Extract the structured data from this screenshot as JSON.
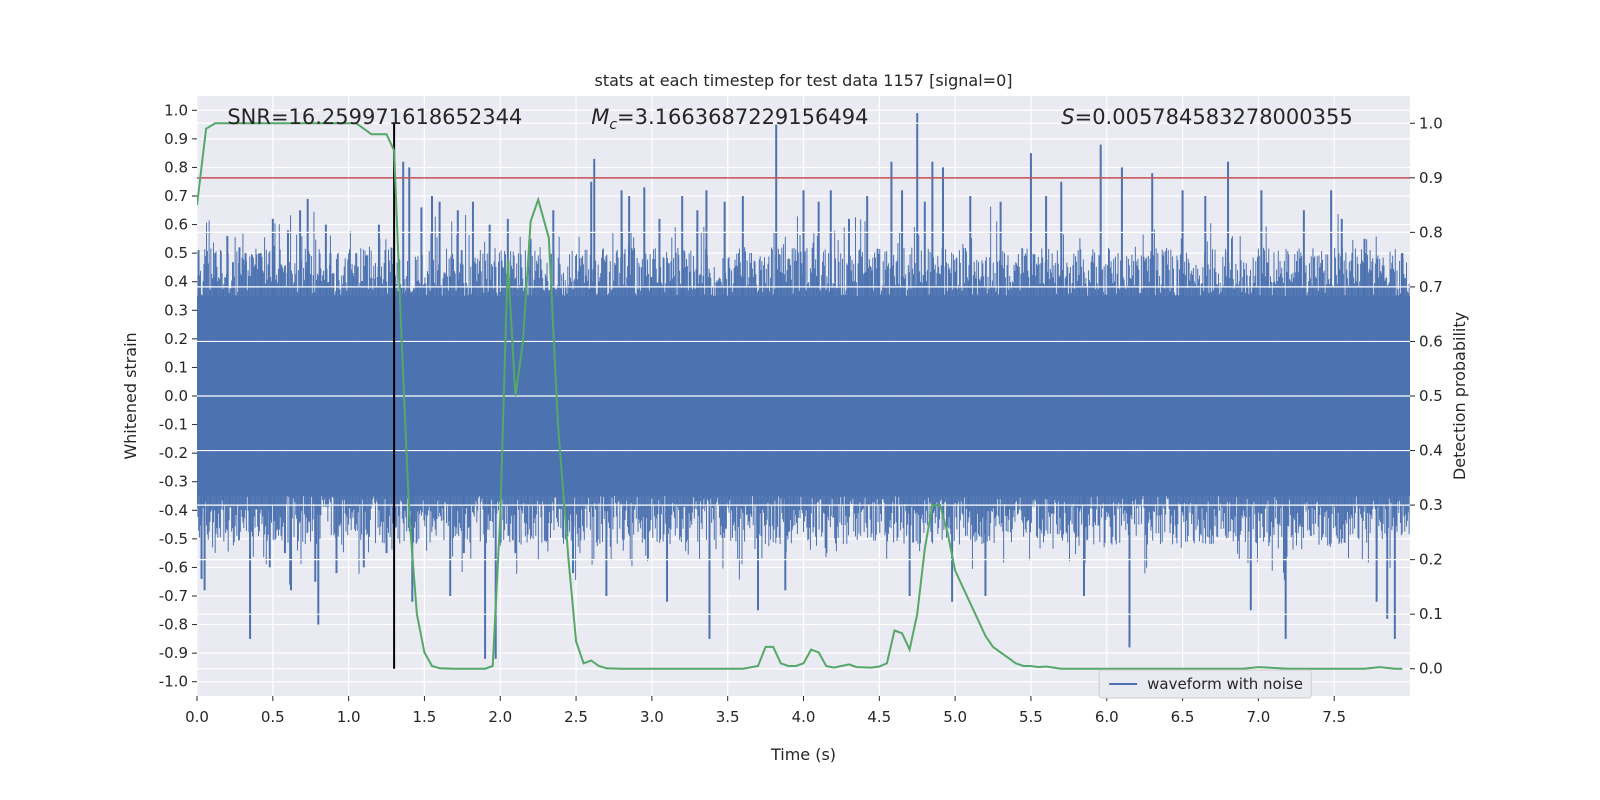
{
  "chart_data": {
    "type": "line",
    "title": "stats at each timestep for test data 1157 [signal=0]",
    "xlabel": "Time (s)",
    "ylabel": "Whitened strain",
    "y2label": "Detection probability",
    "xlim": [
      0.0,
      8.0
    ],
    "ylim": [
      -1.05,
      1.05
    ],
    "y2lim": [
      -0.05,
      1.05
    ],
    "xticks": [
      "0.0",
      "0.5",
      "1.0",
      "1.5",
      "2.0",
      "2.5",
      "3.0",
      "3.5",
      "4.0",
      "4.5",
      "5.0",
      "5.5",
      "6.0",
      "6.5",
      "7.0",
      "7.5"
    ],
    "yticks": [
      "1.0",
      "0.9",
      "0.8",
      "0.7",
      "0.6",
      "0.5",
      "0.4",
      "0.3",
      "0.2",
      "0.1",
      "0.0",
      "-0.1",
      "-0.2",
      "-0.3",
      "-0.4",
      "-0.5",
      "-0.6",
      "-0.7",
      "-0.8",
      "-0.9",
      "-1.0"
    ],
    "y2ticks": [
      "1.0",
      "0.9",
      "0.8",
      "0.7",
      "0.6",
      "0.5",
      "0.4",
      "0.3",
      "0.2",
      "0.1",
      "0.0"
    ],
    "annotations": {
      "snr": "SNR=16.259971618652344",
      "mc_symbol": "M",
      "mc_sub": "c",
      "mc_value": "=3.1663687229156494",
      "s_symbol": "S",
      "s_value": "=0.005784583278000355"
    },
    "legend": {
      "label": "waveform with noise",
      "location": "lower-center-right"
    },
    "threshold": {
      "value": 0.9,
      "axis": "y2",
      "color": "#c44e52"
    },
    "marker_time": 1.3,
    "waveform": {
      "name": "waveform with noise",
      "color": "#4c72b0",
      "core_amplitude": 0.35,
      "spikes": [
        {
          "t": 0.01,
          "v": 0.51
        },
        {
          "t": 0.03,
          "v": -0.64
        },
        {
          "t": 0.05,
          "v": -0.68
        },
        {
          "t": 0.12,
          "v": 0.5
        },
        {
          "t": 0.2,
          "v": 0.56
        },
        {
          "t": 0.28,
          "v": 0.52
        },
        {
          "t": 0.32,
          "v": 0.5
        },
        {
          "t": 0.35,
          "v": -0.85
        },
        {
          "t": 0.42,
          "v": 0.5
        },
        {
          "t": 0.48,
          "v": -0.6
        },
        {
          "t": 0.5,
          "v": 0.62
        },
        {
          "t": 0.58,
          "v": -0.55
        },
        {
          "t": 0.6,
          "v": 0.58
        },
        {
          "t": 0.62,
          "v": -0.68
        },
        {
          "t": 0.68,
          "v": 0.65
        },
        {
          "t": 0.73,
          "v": 0.69
        },
        {
          "t": 0.78,
          "v": -0.65
        },
        {
          "t": 0.8,
          "v": -0.8
        },
        {
          "t": 0.85,
          "v": 0.6
        },
        {
          "t": 0.88,
          "v": 0.5
        },
        {
          "t": 0.92,
          "v": -0.62
        },
        {
          "t": 1.05,
          "v": 0.5
        },
        {
          "t": 1.1,
          "v": -0.6
        },
        {
          "t": 1.2,
          "v": 0.6
        },
        {
          "t": 1.25,
          "v": -0.55
        },
        {
          "t": 1.36,
          "v": 0.82
        },
        {
          "t": 1.4,
          "v": 0.8
        },
        {
          "t": 1.42,
          "v": -0.72
        },
        {
          "t": 1.48,
          "v": 0.66
        },
        {
          "t": 1.55,
          "v": 0.7
        },
        {
          "t": 1.6,
          "v": 0.68
        },
        {
          "t": 1.67,
          "v": -0.7
        },
        {
          "t": 1.72,
          "v": 0.65
        },
        {
          "t": 1.76,
          "v": -0.55
        },
        {
          "t": 1.82,
          "v": 0.68
        },
        {
          "t": 1.9,
          "v": -0.92
        },
        {
          "t": 1.93,
          "v": 0.6
        },
        {
          "t": 1.97,
          "v": -0.92
        },
        {
          "t": 2.05,
          "v": 0.62
        },
        {
          "t": 2.1,
          "v": -0.55
        },
        {
          "t": 2.2,
          "v": 0.55
        },
        {
          "t": 2.35,
          "v": 0.65
        },
        {
          "t": 2.48,
          "v": -0.62
        },
        {
          "t": 2.6,
          "v": 0.75
        },
        {
          "t": 2.62,
          "v": 0.83
        },
        {
          "t": 2.7,
          "v": -0.7
        },
        {
          "t": 2.8,
          "v": 0.72
        },
        {
          "t": 2.85,
          "v": 0.7
        },
        {
          "t": 2.95,
          "v": 0.73
        },
        {
          "t": 3.05,
          "v": 0.62
        },
        {
          "t": 3.1,
          "v": -0.72
        },
        {
          "t": 3.2,
          "v": 0.7
        },
        {
          "t": 3.3,
          "v": 0.65
        },
        {
          "t": 3.36,
          "v": 0.72
        },
        {
          "t": 3.38,
          "v": -0.85
        },
        {
          "t": 3.48,
          "v": 0.68
        },
        {
          "t": 3.6,
          "v": 0.7
        },
        {
          "t": 3.7,
          "v": -0.75
        },
        {
          "t": 3.82,
          "v": 0.95
        },
        {
          "t": 3.88,
          "v": -0.68
        },
        {
          "t": 4.0,
          "v": 0.72
        },
        {
          "t": 4.1,
          "v": 0.68
        },
        {
          "t": 4.18,
          "v": 0.72
        },
        {
          "t": 4.3,
          "v": 0.62
        },
        {
          "t": 4.42,
          "v": 0.7
        },
        {
          "t": 4.58,
          "v": 0.82
        },
        {
          "t": 4.65,
          "v": 0.72
        },
        {
          "t": 4.7,
          "v": -0.7
        },
        {
          "t": 4.75,
          "v": 0.99
        },
        {
          "t": 4.8,
          "v": 0.68
        },
        {
          "t": 4.85,
          "v": 0.82
        },
        {
          "t": 4.92,
          "v": 0.8
        },
        {
          "t": 4.98,
          "v": -0.72
        },
        {
          "t": 5.1,
          "v": 0.7
        },
        {
          "t": 5.2,
          "v": -0.7
        },
        {
          "t": 5.3,
          "v": 0.68
        },
        {
          "t": 5.5,
          "v": 0.85
        },
        {
          "t": 5.6,
          "v": 0.7
        },
        {
          "t": 5.7,
          "v": 0.75
        },
        {
          "t": 5.85,
          "v": -0.7
        },
        {
          "t": 5.96,
          "v": 0.88
        },
        {
          "t": 6.1,
          "v": 0.8
        },
        {
          "t": 6.15,
          "v": -0.88
        },
        {
          "t": 6.3,
          "v": 0.78
        },
        {
          "t": 6.5,
          "v": 0.72
        },
        {
          "t": 6.65,
          "v": 0.7
        },
        {
          "t": 6.8,
          "v": 0.82
        },
        {
          "t": 6.95,
          "v": -0.75
        },
        {
          "t": 7.02,
          "v": 0.72
        },
        {
          "t": 7.18,
          "v": -0.85
        },
        {
          "t": 7.3,
          "v": 0.65
        },
        {
          "t": 7.48,
          "v": 0.72
        },
        {
          "t": 7.55,
          "v": 0.62
        },
        {
          "t": 7.7,
          "v": 0.55
        },
        {
          "t": 7.78,
          "v": -0.72
        },
        {
          "t": 7.85,
          "v": -0.78
        },
        {
          "t": 7.9,
          "v": -0.85
        },
        {
          "t": 7.95,
          "v": 0.5
        }
      ]
    },
    "detection": {
      "name": "Detection probability",
      "color": "#55a868",
      "x": [
        0.0,
        0.06,
        0.12,
        0.2,
        0.3,
        0.4,
        0.5,
        0.6,
        0.7,
        0.8,
        0.9,
        1.0,
        1.05,
        1.1,
        1.15,
        1.2,
        1.25,
        1.3,
        1.35,
        1.4,
        1.45,
        1.5,
        1.55,
        1.6,
        1.7,
        1.8,
        1.9,
        1.95,
        2.0,
        2.05,
        2.1,
        2.15,
        2.2,
        2.25,
        2.32,
        2.38,
        2.45,
        2.5,
        2.55,
        2.6,
        2.65,
        2.7,
        2.8,
        3.0,
        3.2,
        3.4,
        3.6,
        3.7,
        3.75,
        3.8,
        3.85,
        3.9,
        3.95,
        4.0,
        4.05,
        4.1,
        4.15,
        4.2,
        4.25,
        4.3,
        4.35,
        4.45,
        4.5,
        4.55,
        4.6,
        4.65,
        4.7,
        4.75,
        4.8,
        4.85,
        4.9,
        4.95,
        5.0,
        5.05,
        5.1,
        5.15,
        5.2,
        5.25,
        5.3,
        5.35,
        5.4,
        5.45,
        5.5,
        5.55,
        5.6,
        5.65,
        5.7,
        5.8,
        6.0,
        6.3,
        6.6,
        6.9,
        7.0,
        7.2,
        7.4,
        7.6,
        7.7,
        7.8,
        7.9,
        7.95
      ],
      "y": [
        0.85,
        0.99,
        1.0,
        1.0,
        1.0,
        1.0,
        1.0,
        1.0,
        1.0,
        1.0,
        1.0,
        1.0,
        1.0,
        0.99,
        0.98,
        0.98,
        0.98,
        0.95,
        0.6,
        0.28,
        0.1,
        0.03,
        0.005,
        0.001,
        0.0,
        0.0,
        0.0,
        0.005,
        0.28,
        0.75,
        0.5,
        0.6,
        0.82,
        0.86,
        0.79,
        0.45,
        0.2,
        0.05,
        0.01,
        0.015,
        0.005,
        0.001,
        0.0,
        0.0,
        0.0,
        0.0,
        0.0,
        0.005,
        0.04,
        0.04,
        0.01,
        0.005,
        0.005,
        0.01,
        0.035,
        0.03,
        0.005,
        0.002,
        0.005,
        0.008,
        0.003,
        0.002,
        0.004,
        0.01,
        0.07,
        0.065,
        0.035,
        0.1,
        0.22,
        0.3,
        0.3,
        0.25,
        0.18,
        0.15,
        0.12,
        0.09,
        0.06,
        0.04,
        0.03,
        0.02,
        0.01,
        0.005,
        0.005,
        0.003,
        0.004,
        0.002,
        0.0,
        0.0,
        0.0,
        0.0,
        0.0,
        0.0,
        0.003,
        0.0,
        0.0,
        0.0,
        0.0,
        0.003,
        0.0,
        0.0
      ]
    }
  }
}
